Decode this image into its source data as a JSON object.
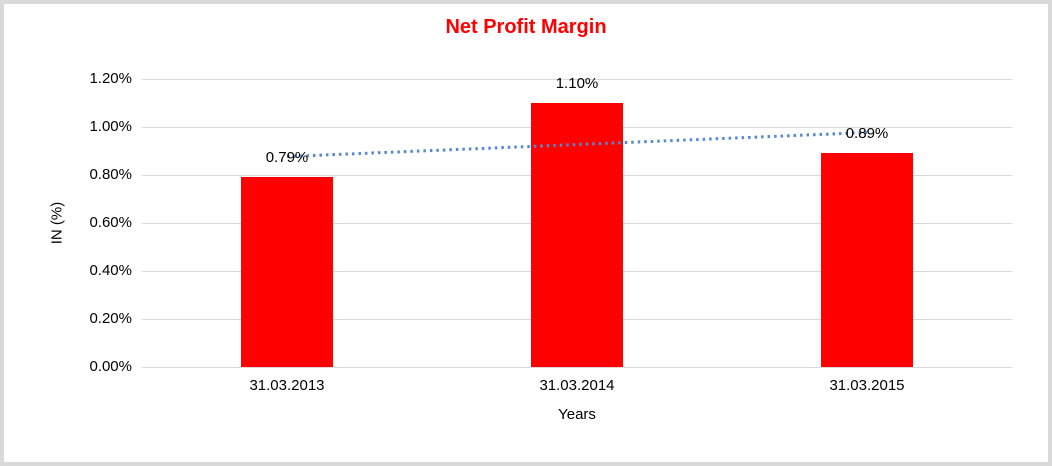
{
  "window": {
    "background": "#FFFFFF",
    "frame_border_color": "#D9D9D9"
  },
  "chart_data": {
    "type": "bar",
    "title": "Net Profit Margin",
    "title_color": "#FF0000",
    "categories": [
      "31.03.2013",
      "31.03.2014",
      "31.03.2015"
    ],
    "values": [
      0.79,
      1.1,
      0.89
    ],
    "value_labels": [
      "0.79%",
      "1.10%",
      "0.89%"
    ],
    "xlabel": "Years",
    "ylabel": "IN (%)",
    "ylim": [
      0,
      1.2
    ],
    "ytick_step": 0.2,
    "ytick_labels": [
      "0.00%",
      "0.20%",
      "0.40%",
      "0.60%",
      "0.80%",
      "1.00%",
      "1.20%"
    ],
    "bar_color": "#FF0000",
    "gridline_color": "#D9D9D9",
    "text_color": "#000000",
    "grid": true,
    "legend": "none",
    "trendline": {
      "type": "linear",
      "style": "dotted",
      "color": "#5588CC",
      "endpoint_values": [
        0.877,
        0.977
      ]
    }
  }
}
